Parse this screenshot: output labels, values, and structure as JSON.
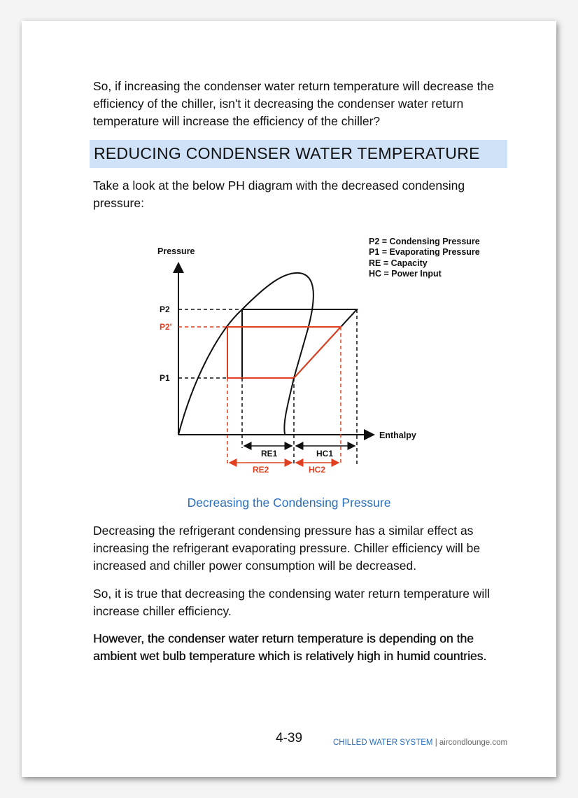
{
  "paragraphs": {
    "intro": "So, if increasing the condenser water return temperature will decrease the efficiency of the chiller, isn't it decreasing the condenser water return temperature will increase the efficiency of the chiller?",
    "lead": "Take a look at the below PH diagram with the decreased condensing pressure:",
    "effect": "Decreasing the refrigerant condensing pressure has a similar effect as increasing the refrigerant evaporating pressure. Chiller efficiency will be increased and chiller power consumption will be decreased.",
    "conclusion": "So, it is true that decreasing the condensing water return temperature will increase chiller efficiency.",
    "however": "However, the condenser water return temperature is depending on the ambient wet bulb temperature which is relatively high in humid countries."
  },
  "heading": "REDUCING CONDENSER WATER TEMPERATURE",
  "diagram": {
    "y_axis": "Pressure",
    "x_axis": "Enthalpy",
    "p2": "P2",
    "p2_prime": "P2'",
    "p1": "P1",
    "legend": [
      "P2 = Condensing Pressure",
      "P1 = Evaporating Pressure",
      "RE = Capacity",
      "HC = Power Input"
    ],
    "re1": "RE1",
    "hc1": "HC1",
    "re2": "RE2",
    "hc2": "HC2",
    "colors": {
      "original": "#111111",
      "reduced": "#e0401f"
    }
  },
  "caption": "Decreasing the Condensing Pressure",
  "footer": {
    "page_number": "4-39",
    "section": "CHILLED WATER SYSTEM",
    "separator": "|",
    "site": "aircondlounge.com"
  }
}
